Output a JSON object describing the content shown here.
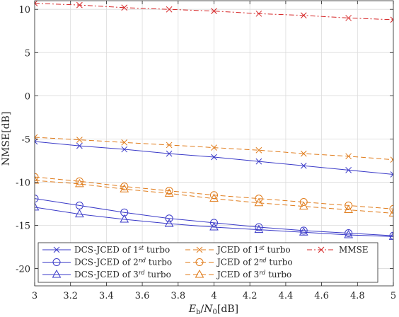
{
  "chart_data": {
    "type": "line",
    "xlabel": "E_b/N_0[dB]",
    "ylabel": "NMSE[dB]",
    "xlim": [
      3,
      5
    ],
    "ylim": [
      -22,
      11
    ],
    "xticks": [
      "3",
      "3.2",
      "3.4",
      "3.6",
      "3.8",
      "4",
      "4.2",
      "4.4",
      "4.6",
      "4.8",
      "5"
    ],
    "yticks": [
      "10",
      "5",
      "0",
      "-5",
      "-10",
      "-15",
      "-20"
    ],
    "grid": true,
    "legend_position": "bottom",
    "x": [
      3,
      3.25,
      3.5,
      3.75,
      4,
      4.25,
      4.5,
      4.75,
      5
    ],
    "series": [
      {
        "name": "DCS-JCED of 1st turbo",
        "color": "#3a3ac8",
        "style": "solid",
        "marker": "x",
        "values": [
          -5.3,
          -5.8,
          -6.2,
          -6.7,
          -7.1,
          -7.6,
          -8.1,
          -8.6,
          -9.1
        ]
      },
      {
        "name": "DCS-JCED of 2nd turbo",
        "color": "#3a3ac8",
        "style": "solid",
        "marker": "circle",
        "values": [
          -11.9,
          -12.7,
          -13.5,
          -14.2,
          -14.7,
          -15.2,
          -15.6,
          -15.9,
          -16.2
        ]
      },
      {
        "name": "DCS-JCED of 3rd turbo",
        "color": "#3a3ac8",
        "style": "solid",
        "marker": "triangle",
        "values": [
          -12.9,
          -13.7,
          -14.3,
          -14.8,
          -15.2,
          -15.5,
          -15.8,
          -16.1,
          -16.3
        ]
      },
      {
        "name": "JCED of 1st turbo",
        "color": "#e07b1a",
        "style": "dashed",
        "marker": "x",
        "values": [
          -4.8,
          -5.1,
          -5.4,
          -5.7,
          -6.0,
          -6.3,
          -6.7,
          -7.0,
          -7.4
        ]
      },
      {
        "name": "JCED of 2nd turbo",
        "color": "#e07b1a",
        "style": "dashed",
        "marker": "circle",
        "values": [
          -9.4,
          -9.9,
          -10.5,
          -11.0,
          -11.5,
          -11.9,
          -12.3,
          -12.7,
          -13.1
        ]
      },
      {
        "name": "JCED of 3rd turbo",
        "color": "#e07b1a",
        "style": "dashed",
        "marker": "triangle",
        "values": [
          -9.8,
          -10.2,
          -10.8,
          -11.3,
          -11.9,
          -12.4,
          -12.8,
          -13.2,
          -13.6
        ]
      },
      {
        "name": "MMSE",
        "color": "#d62728",
        "style": "dashdot",
        "marker": "x",
        "values": [
          10.7,
          10.5,
          10.2,
          10.0,
          9.8,
          9.5,
          9.3,
          9.0,
          8.8
        ]
      }
    ]
  }
}
